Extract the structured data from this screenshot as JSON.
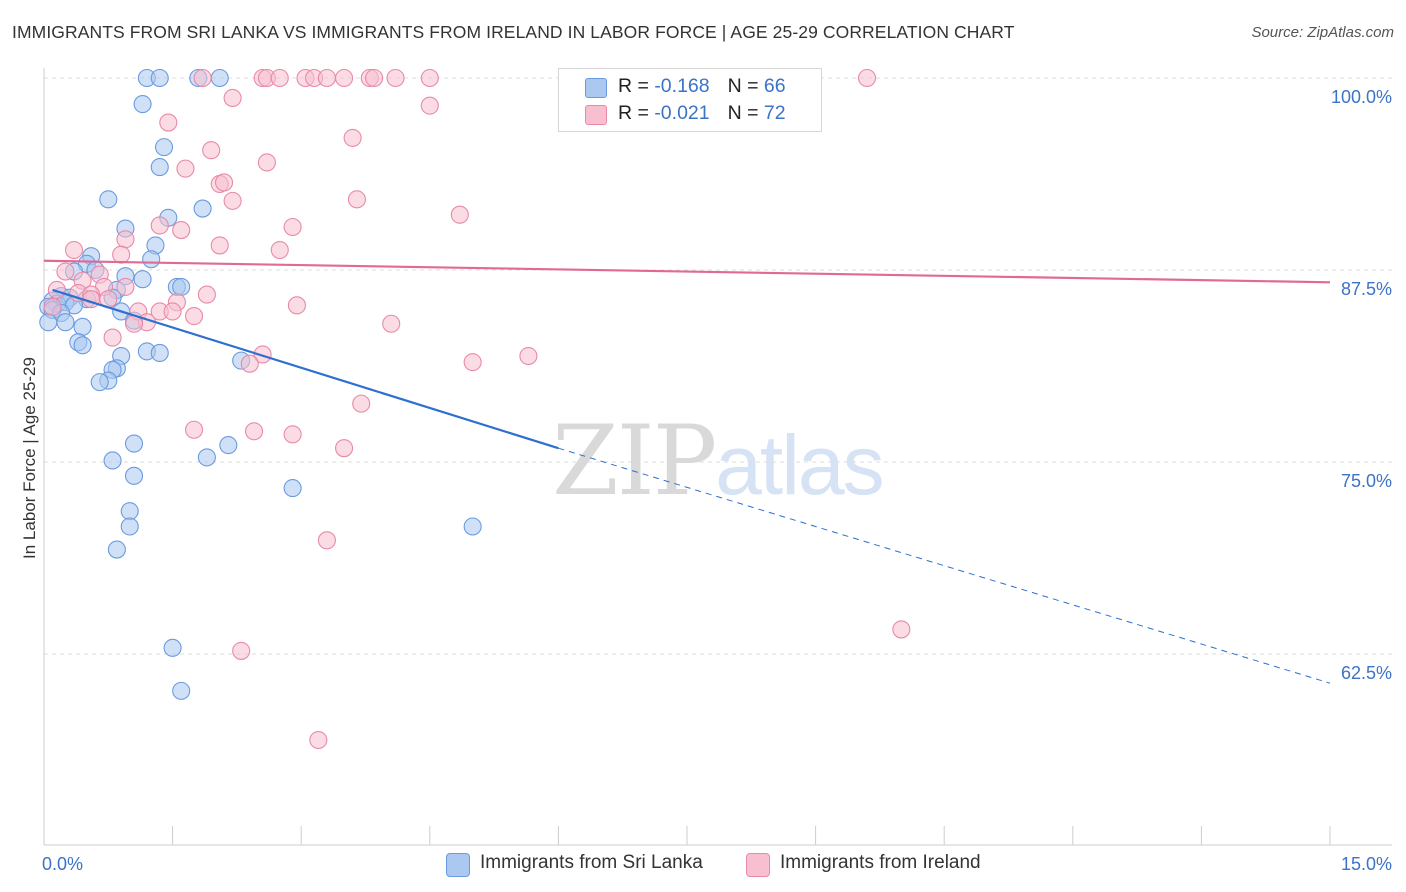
{
  "title": "IMMIGRANTS FROM SRI LANKA VS IMMIGRANTS FROM IRELAND IN LABOR FORCE | AGE 25-29 CORRELATION CHART",
  "source": "Source: ZipAtlas.com",
  "watermark": {
    "zip": "ZIP",
    "atlas": "atlas"
  },
  "legend": {
    "rows": [
      {
        "r_label": "R = ",
        "r_value": "-0.168",
        "n_label": "N = ",
        "n_value": "66",
        "color": "#aac8f0",
        "border": "#6a9be0"
      },
      {
        "r_label": "R = ",
        "r_value": "-0.021",
        "n_label": "N = ",
        "n_value": "72",
        "color": "#f8bfd0",
        "border": "#e88aa8"
      }
    ]
  },
  "bottom_legend": [
    {
      "label": "Immigrants from Sri Lanka",
      "color": "#aac8f0",
      "border": "#6a9be0"
    },
    {
      "label": "Immigrants from Ireland",
      "color": "#f8bfd0",
      "border": "#e88aa8"
    }
  ],
  "chart_data": {
    "type": "scatter",
    "title": "IMMIGRANTS FROM SRI LANKA VS IMMIGRANTS FROM IRELAND IN LABOR FORCE | AGE 25-29 CORRELATION CHART",
    "xlabel": "",
    "ylabel": "In Labor Force | Age 25-29",
    "xlim": [
      0,
      15
    ],
    "ylim": [
      52,
      101
    ],
    "x_tick_labels": [
      {
        "value": 0,
        "label": "0.0%"
      },
      {
        "value": 15,
        "label": "15.0%"
      }
    ],
    "y_tick_labels": [
      {
        "value": 100,
        "label": "100.0%"
      },
      {
        "value": 87.5,
        "label": "87.5%"
      },
      {
        "value": 75,
        "label": "75.0%"
      },
      {
        "value": 62.5,
        "label": "62.5%"
      }
    ],
    "series": [
      {
        "name": "Immigrants from Sri Lanka",
        "color": "#6a9be0",
        "fill": "#aac8f0",
        "trend": {
          "x0": 0.1,
          "y0": 86.2,
          "x1": 6.0,
          "y1": 75.9,
          "x_dash_end": 15.0,
          "y_dash_end": 60.6,
          "color": "#2e6fd0"
        },
        "points": [
          [
            1.2,
            100
          ],
          [
            1.35,
            100
          ],
          [
            1.8,
            100
          ],
          [
            2.05,
            100
          ],
          [
            1.15,
            98.3
          ],
          [
            1.4,
            95.5
          ],
          [
            1.35,
            94.2
          ],
          [
            0.75,
            92.1
          ],
          [
            1.85,
            91.5
          ],
          [
            1.45,
            90.9
          ],
          [
            0.95,
            90.2
          ],
          [
            1.3,
            89.1
          ],
          [
            0.55,
            88.4
          ],
          [
            1.25,
            88.2
          ],
          [
            0.5,
            87.9
          ],
          [
            0.35,
            87.4
          ],
          [
            0.6,
            87.5
          ],
          [
            0.95,
            87.1
          ],
          [
            1.15,
            86.9
          ],
          [
            1.55,
            86.4
          ],
          [
            1.6,
            86.4
          ],
          [
            0.2,
            85.8
          ],
          [
            0.3,
            85.7
          ],
          [
            0.5,
            85.6
          ],
          [
            0.85,
            86.2
          ],
          [
            0.8,
            85.7
          ],
          [
            0.1,
            85.5
          ],
          [
            0.15,
            85.3
          ],
          [
            0.25,
            85.4
          ],
          [
            0.35,
            85.2
          ],
          [
            0.05,
            85.1
          ],
          [
            0.1,
            84.9
          ],
          [
            0.2,
            84.7
          ],
          [
            0.9,
            84.8
          ],
          [
            1.05,
            84.2
          ],
          [
            0.05,
            84.1
          ],
          [
            0.25,
            84.1
          ],
          [
            0.45,
            83.8
          ],
          [
            0.4,
            82.8
          ],
          [
            0.45,
            82.6
          ],
          [
            1.2,
            82.2
          ],
          [
            1.35,
            82.1
          ],
          [
            0.9,
            81.9
          ],
          [
            2.3,
            81.6
          ],
          [
            0.85,
            81.1
          ],
          [
            0.8,
            81.0
          ],
          [
            0.75,
            80.3
          ],
          [
            0.65,
            80.2
          ],
          [
            1.05,
            76.2
          ],
          [
            2.15,
            76.1
          ],
          [
            0.8,
            75.1
          ],
          [
            1.9,
            75.3
          ],
          [
            1.05,
            74.1
          ],
          [
            2.9,
            73.3
          ],
          [
            1.0,
            71.8
          ],
          [
            1.0,
            70.8
          ],
          [
            5.0,
            70.8
          ],
          [
            0.85,
            69.3
          ],
          [
            1.5,
            62.9
          ],
          [
            1.6,
            60.1
          ]
        ]
      },
      {
        "name": "Immigrants from Ireland",
        "color": "#e88aa8",
        "fill": "#f8bfd0",
        "trend": {
          "x0": 0.0,
          "y0": 88.1,
          "x1": 15.0,
          "y1": 86.7,
          "color": "#e06a93"
        },
        "points": [
          [
            1.85,
            100
          ],
          [
            2.55,
            100
          ],
          [
            2.6,
            100
          ],
          [
            2.75,
            100
          ],
          [
            3.05,
            100
          ],
          [
            3.15,
            100
          ],
          [
            3.3,
            100
          ],
          [
            3.5,
            100
          ],
          [
            3.8,
            100
          ],
          [
            3.85,
            100
          ],
          [
            4.1,
            100
          ],
          [
            4.5,
            100
          ],
          [
            9.6,
            100
          ],
          [
            2.2,
            98.7
          ],
          [
            4.5,
            98.2
          ],
          [
            1.45,
            97.1
          ],
          [
            3.6,
            96.1
          ],
          [
            1.95,
            95.3
          ],
          [
            2.6,
            94.5
          ],
          [
            1.65,
            94.1
          ],
          [
            2.05,
            93.1
          ],
          [
            2.1,
            93.2
          ],
          [
            2.2,
            92.0
          ],
          [
            3.65,
            92.1
          ],
          [
            4.85,
            91.1
          ],
          [
            1.35,
            90.4
          ],
          [
            1.6,
            90.1
          ],
          [
            2.9,
            90.3
          ],
          [
            0.95,
            89.5
          ],
          [
            2.05,
            89.1
          ],
          [
            2.75,
            88.8
          ],
          [
            0.35,
            88.8
          ],
          [
            0.9,
            88.5
          ],
          [
            0.25,
            87.4
          ],
          [
            0.65,
            87.2
          ],
          [
            0.45,
            86.8
          ],
          [
            0.7,
            86.4
          ],
          [
            0.15,
            86.2
          ],
          [
            0.4,
            86.0
          ],
          [
            0.55,
            85.9
          ],
          [
            0.95,
            86.4
          ],
          [
            1.9,
            85.9
          ],
          [
            0.55,
            85.6
          ],
          [
            0.75,
            85.6
          ],
          [
            1.55,
            85.4
          ],
          [
            2.95,
            85.2
          ],
          [
            0.1,
            85.1
          ],
          [
            1.1,
            84.8
          ],
          [
            1.35,
            84.8
          ],
          [
            1.5,
            84.8
          ],
          [
            1.75,
            84.5
          ],
          [
            1.2,
            84.1
          ],
          [
            1.05,
            84.0
          ],
          [
            4.05,
            84.0
          ],
          [
            0.8,
            83.1
          ],
          [
            2.55,
            82.0
          ],
          [
            5.65,
            81.9
          ],
          [
            2.4,
            81.4
          ],
          [
            5.0,
            81.5
          ],
          [
            3.7,
            78.8
          ],
          [
            1.75,
            77.1
          ],
          [
            2.45,
            77.0
          ],
          [
            2.9,
            76.8
          ],
          [
            3.5,
            75.9
          ],
          [
            3.3,
            69.9
          ],
          [
            10.0,
            64.1
          ],
          [
            2.3,
            62.7
          ],
          [
            3.2,
            56.9
          ]
        ]
      }
    ]
  }
}
